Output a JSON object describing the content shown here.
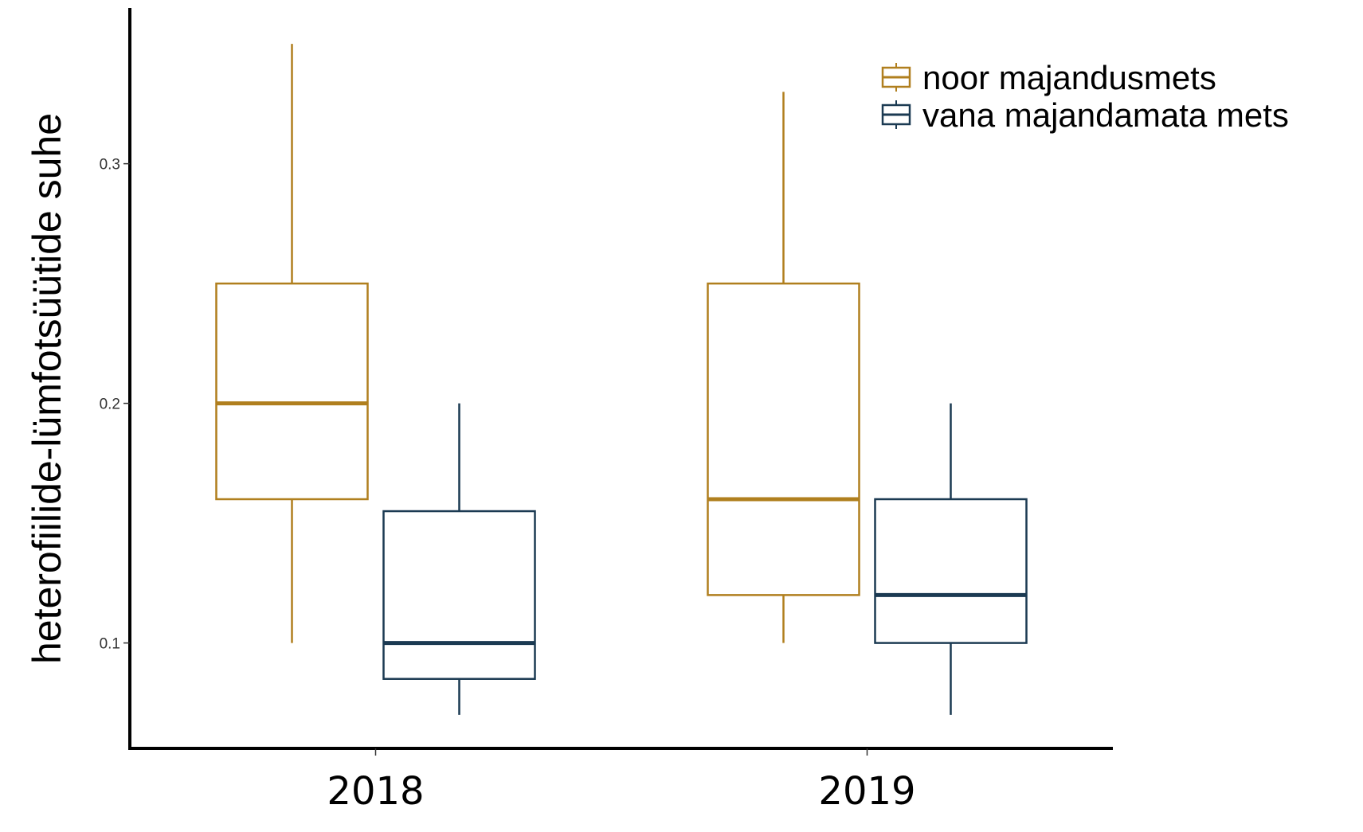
{
  "chart_data": {
    "type": "boxplot",
    "title": "",
    "xlabel": "",
    "ylabel": "heterofiilide-lümfotsüütide suhe",
    "categories": [
      "2018",
      "2019"
    ],
    "ylim": [
      0.056,
      0.365
    ],
    "yticks": [
      0.1,
      0.2,
      0.3
    ],
    "ytick_labels": [
      "0.1",
      "0.2",
      "0.3"
    ],
    "grid": false,
    "legend": {
      "placement": "top-right"
    },
    "series": [
      {
        "name": "noor majandusmets",
        "color": "#B07F1E",
        "boxes": [
          {
            "category": "2018",
            "min": 0.1,
            "q1": 0.16,
            "median": 0.2,
            "q3": 0.25,
            "max": 0.35
          },
          {
            "category": "2019",
            "min": 0.1,
            "q1": 0.12,
            "median": 0.16,
            "q3": 0.25,
            "max": 0.33
          }
        ]
      },
      {
        "name": "vana majandamata mets",
        "color": "#1B3A52",
        "boxes": [
          {
            "category": "2018",
            "min": 0.07,
            "q1": 0.085,
            "median": 0.1,
            "q3": 0.155,
            "max": 0.2
          },
          {
            "category": "2019",
            "min": 0.07,
            "q1": 0.1,
            "median": 0.12,
            "q3": 0.16,
            "max": 0.2
          }
        ]
      }
    ]
  }
}
